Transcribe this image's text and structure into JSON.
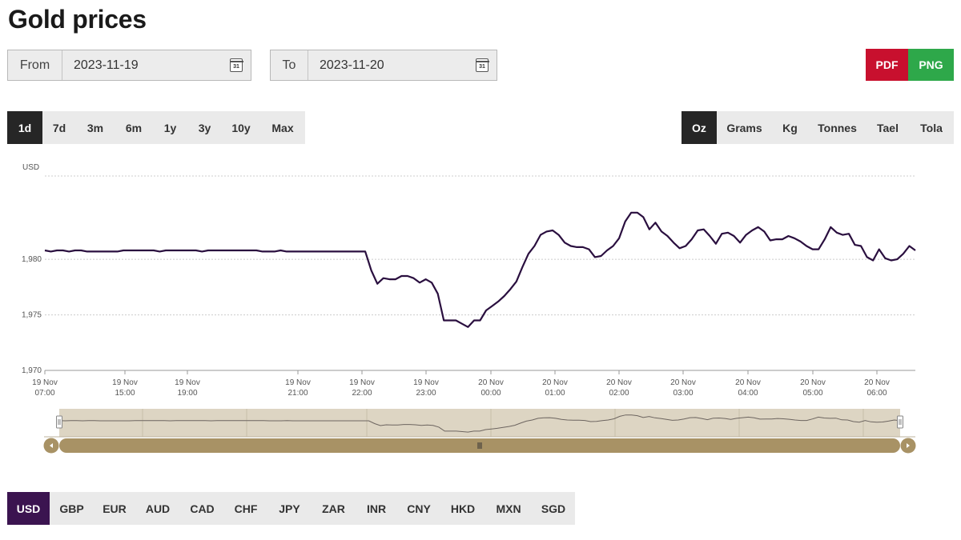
{
  "page": {
    "title": "Gold prices"
  },
  "date_range": {
    "from_label": "From",
    "from_value": "2023-11-19",
    "to_label": "To",
    "to_value": "2023-11-20",
    "calendar_icon_text": "31"
  },
  "export": {
    "pdf_label": "PDF",
    "png_label": "PNG",
    "pdf_color": "#c8102e",
    "png_color": "#2ea84a"
  },
  "periods": {
    "selected": "1d",
    "items": [
      "1d",
      "7d",
      "3m",
      "6m",
      "1y",
      "3y",
      "10y",
      "Max"
    ]
  },
  "units": {
    "selected": "Oz",
    "items": [
      "Oz",
      "Grams",
      "Kg",
      "Tonnes",
      "Tael",
      "Tola"
    ]
  },
  "currencies": {
    "selected": "USD",
    "items": [
      "USD",
      "GBP",
      "EUR",
      "AUD",
      "CAD",
      "CHF",
      "JPY",
      "ZAR",
      "INR",
      "CNY",
      "HKD",
      "MXN",
      "SGD"
    ]
  },
  "colors": {
    "line": "#2a0f3f",
    "navigator_bg": "#ddd5c3",
    "navigator_bar": "#a89265",
    "selected_currency_bg": "#3b1450",
    "selected_dark_bg": "#262626"
  },
  "chart_data": {
    "type": "line",
    "ylabel": "USD",
    "ylim": [
      1970,
      1987.5
    ],
    "yticks": [
      1970,
      1975,
      1980
    ],
    "ytick_labels": [
      "1,970",
      "1,975",
      "1,980"
    ],
    "grid": true,
    "x_ticks": [
      {
        "line1": "19 Nov",
        "line2": "07:00"
      },
      {
        "line1": "19 Nov",
        "line2": "15:00"
      },
      {
        "line1": "19 Nov",
        "line2": "19:00"
      },
      {
        "line1": "19 Nov",
        "line2": "21:00"
      },
      {
        "line1": "19 Nov",
        "line2": "22:00"
      },
      {
        "line1": "19 Nov",
        "line2": "23:00"
      },
      {
        "line1": "20 Nov",
        "line2": "00:00"
      },
      {
        "line1": "20 Nov",
        "line2": "01:00"
      },
      {
        "line1": "20 Nov",
        "line2": "02:00"
      },
      {
        "line1": "20 Nov",
        "line2": "03:00"
      },
      {
        "line1": "20 Nov",
        "line2": "04:00"
      },
      {
        "line1": "20 Nov",
        "line2": "05:00"
      },
      {
        "line1": "20 Nov",
        "line2": "06:00"
      }
    ],
    "series": [
      {
        "values": [
          1980.8,
          1980.7,
          1980.8,
          1980.8,
          1980.7,
          1980.8,
          1980.8,
          1980.7,
          1980.7,
          1980.7,
          1980.7,
          1980.7,
          1980.7,
          1980.8,
          1980.8,
          1980.8,
          1980.8,
          1980.8,
          1980.8,
          1980.7,
          1980.8,
          1980.8,
          1980.8,
          1980.8,
          1980.8,
          1980.8,
          1980.7,
          1980.8,
          1980.8,
          1980.8,
          1980.8,
          1980.8,
          1980.8,
          1980.8,
          1980.8,
          1980.8,
          1980.7,
          1980.7,
          1980.7,
          1980.8,
          1980.7,
          1980.7,
          1980.7,
          1980.7,
          1980.7,
          1980.7,
          1980.7,
          1980.7,
          1980.7,
          1980.7,
          1980.7,
          1980.7,
          1980.7,
          1980.7,
          1979.0,
          1977.8,
          1978.3,
          1978.2,
          1978.2,
          1978.5,
          1978.5,
          1978.3,
          1977.9,
          1978.2,
          1977.9,
          1976.9,
          1974.5,
          1974.5,
          1974.5,
          1974.2,
          1973.9,
          1974.5,
          1974.5,
          1975.4,
          1975.8,
          1976.2,
          1976.7,
          1977.3,
          1978.0,
          1979.3,
          1980.5,
          1981.2,
          1982.2,
          1982.5,
          1982.6,
          1982.2,
          1981.5,
          1981.2,
          1981.1,
          1981.1,
          1980.9,
          1980.2,
          1980.3,
          1980.8,
          1981.2,
          1981.9,
          1983.4,
          1984.2,
          1984.2,
          1983.8,
          1982.7,
          1983.3,
          1982.5,
          1982.1,
          1981.5,
          1981.0,
          1981.2,
          1981.8,
          1982.6,
          1982.7,
          1982.1,
          1981.4,
          1982.3,
          1982.4,
          1982.1,
          1981.5,
          1982.2,
          1982.6,
          1982.9,
          1982.5,
          1981.7,
          1981.8,
          1981.8,
          1982.1,
          1981.9,
          1981.6,
          1981.2,
          1980.9,
          1980.9,
          1981.8,
          1982.9,
          1982.4,
          1982.2,
          1982.3,
          1981.3,
          1981.2,
          1980.2,
          1979.9,
          1980.9,
          1980.1,
          1979.9,
          1980.0,
          1980.5,
          1981.2,
          1980.8
        ]
      }
    ]
  }
}
